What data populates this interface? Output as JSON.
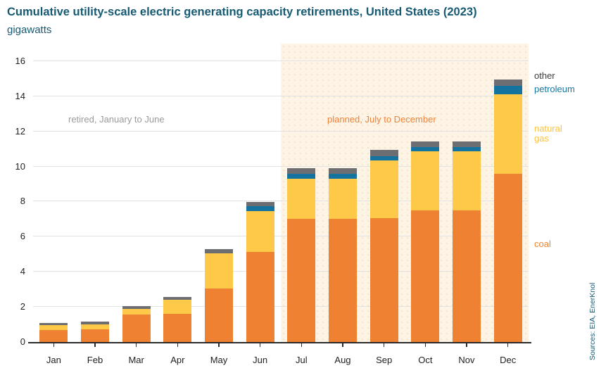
{
  "header": {
    "title": "Cumulative utility-scale electric generating capacity retirements, United States (2023)",
    "units": "gigawatts"
  },
  "annotations": {
    "retired": "retired, January to June",
    "planned": "planned, July to December"
  },
  "source_note": "Sources: EIA, EnerKnol",
  "colors": {
    "coal": "#ef8232",
    "natural_gas": "#fec848",
    "petroleum": "#15739f",
    "other": "#6d6e71",
    "planned_background": "#fdf4e5",
    "title_text": "#175a73",
    "retired_label": "#9a9a9a",
    "planned_label": "#f0833a"
  },
  "chart_data": {
    "type": "bar",
    "stacked": true,
    "title": "Cumulative utility-scale electric generating capacity retirements, United States (2023)",
    "ylabel": "gigawatts",
    "xlabel": "",
    "ylim": [
      0,
      17
    ],
    "yticks": [
      0,
      2,
      4,
      6,
      8,
      10,
      12,
      14,
      16
    ],
    "grid": true,
    "categories": [
      "Jan",
      "Feb",
      "Mar",
      "Apr",
      "May",
      "Jun",
      "Jul",
      "Aug",
      "Sep",
      "Oct",
      "Nov",
      "Dec"
    ],
    "series": [
      {
        "name": "coal",
        "color": "#ef8232",
        "values": [
          0.7,
          0.74,
          1.55,
          1.62,
          3.05,
          5.15,
          7.0,
          7.0,
          7.05,
          7.5,
          7.5,
          9.6
        ]
      },
      {
        "name": "natural gas",
        "color": "#fec848",
        "values": [
          0.28,
          0.28,
          0.35,
          0.78,
          2.0,
          2.32,
          2.32,
          2.32,
          3.3,
          3.35,
          3.35,
          4.5
        ]
      },
      {
        "name": "petroleum",
        "color": "#15739f",
        "values": [
          0.0,
          0.0,
          0.0,
          0.0,
          0.0,
          0.25,
          0.25,
          0.25,
          0.25,
          0.25,
          0.25,
          0.5
        ]
      },
      {
        "name": "other",
        "color": "#6d6e71",
        "values": [
          0.12,
          0.13,
          0.14,
          0.15,
          0.25,
          0.28,
          0.33,
          0.33,
          0.33,
          0.33,
          0.33,
          0.35
        ]
      }
    ],
    "totals": [
      1.1,
      1.15,
      2.04,
      2.55,
      5.3,
      8.0,
      9.9,
      9.9,
      10.93,
      11.43,
      11.43,
      14.95
    ],
    "legend": {
      "position": "right",
      "entries": [
        "other",
        "petroleum",
        "natural gas",
        "coal"
      ]
    },
    "planned_region": {
      "from": "Jul",
      "to": "Dec"
    }
  }
}
